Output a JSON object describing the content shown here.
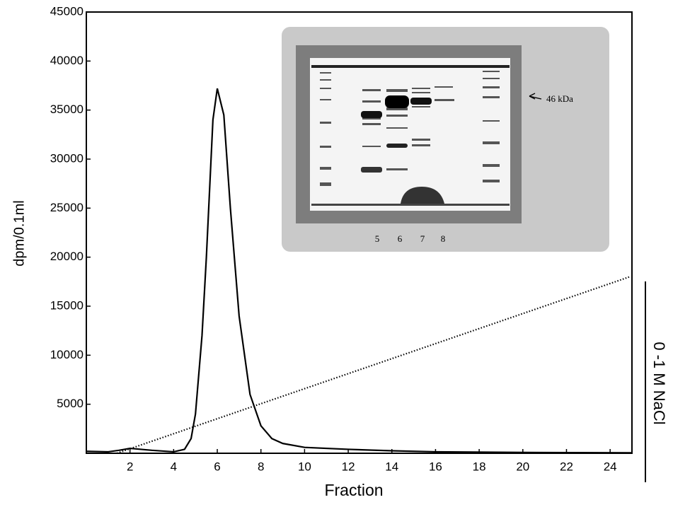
{
  "chart_data": {
    "type": "line",
    "xlabel": "Fraction",
    "ylabel": "dpm/0.1ml",
    "gradient_label": "0 -1 M NaCl",
    "xlim": [
      0,
      25
    ],
    "xticks": [
      2,
      4,
      6,
      8,
      10,
      12,
      14,
      16,
      18,
      20,
      22,
      24
    ],
    "ylim": [
      0,
      45000
    ],
    "yticks": [
      5000,
      10000,
      15000,
      20000,
      25000,
      30000,
      35000,
      40000,
      45000
    ],
    "series": [
      {
        "color": "#000000",
        "style": "solid",
        "x": [
          0,
          1,
          1.5,
          2,
          3,
          4,
          4.5,
          4.8,
          5,
          5.3,
          5.5,
          5.8,
          6,
          6.3,
          6.6,
          7,
          7.5,
          8,
          8.5,
          9,
          10,
          12,
          14,
          16,
          20,
          25
        ],
        "values": [
          200,
          150,
          300,
          500,
          300,
          150,
          400,
          1500,
          4000,
          12000,
          20000,
          34000,
          37200,
          34500,
          25000,
          14000,
          6000,
          2800,
          1500,
          1000,
          600,
          400,
          250,
          150,
          80,
          50
        ]
      },
      {
        "color": "#000000",
        "style": "dotted",
        "x": [
          1.4,
          24.9
        ],
        "values": [
          0,
          18000
        ]
      }
    ],
    "inset": {
      "lanes": [
        "5",
        "6",
        "7",
        "8"
      ],
      "marker": "46 kDa"
    }
  }
}
